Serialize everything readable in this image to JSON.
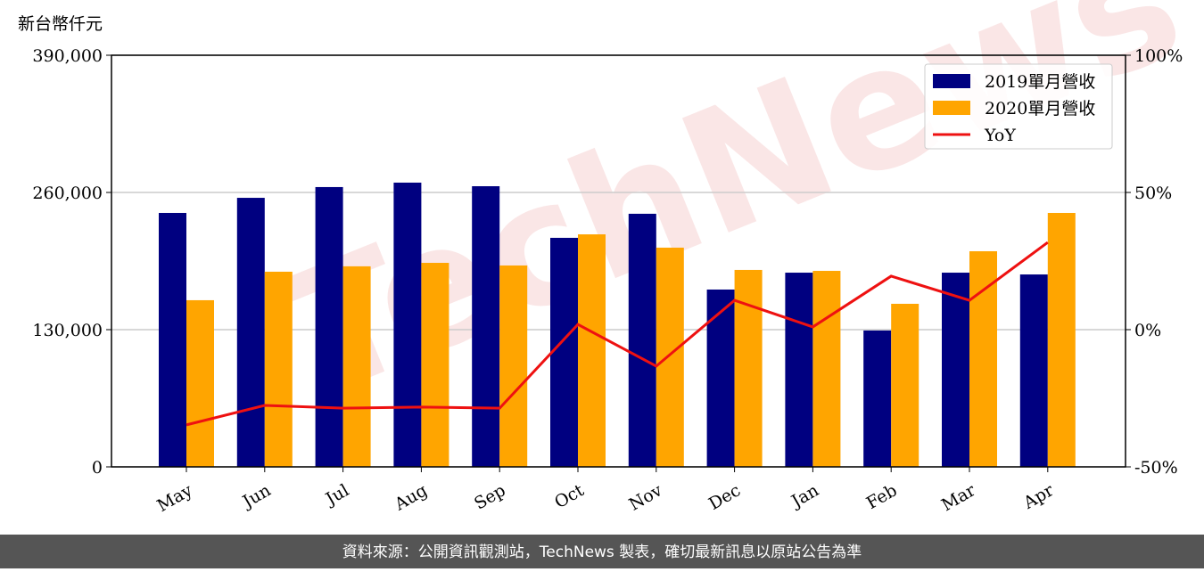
{
  "chart_data": {
    "type": "bar_line",
    "ylabel": "新台幣仟元",
    "watermark": "TechNews",
    "footer": "資料來源：公開資訊觀測站，TechNews 製表，確切最新訊息以原站公告為準",
    "categories": [
      "May",
      "Jun",
      "Jul",
      "Aug",
      "Sep",
      "Oct",
      "Nov",
      "Dec",
      "Jan",
      "Feb",
      "Mar",
      "Apr"
    ],
    "series": [
      {
        "name": "2019單月營收",
        "color": "#000080",
        "type": "bar",
        "values": [
          240600,
          254900,
          265100,
          269300,
          265900,
          217000,
          239800,
          168000,
          184000,
          129200,
          184000,
          182300
        ]
      },
      {
        "name": "2020單月營收",
        "color": "#ffa500",
        "type": "bar",
        "values": [
          157900,
          184900,
          190000,
          193300,
          190800,
          220300,
          207700,
          186600,
          185700,
          154500,
          204300,
          240600
        ]
      },
      {
        "name": "YoY",
        "color": "#ee1111",
        "type": "line",
        "axis": "y2",
        "values": [
          -34.7,
          -27.6,
          -28.6,
          -28.2,
          -28.6,
          1.9,
          -13.3,
          10.7,
          1.0,
          19.5,
          10.7,
          31.8
        ]
      }
    ],
    "ylim": [
      0,
      390000
    ],
    "yticks": [
      0,
      {
        "value": 130000,
        "label": "130,000"
      },
      {
        "value": 260000,
        "label": "260,000"
      },
      {
        "value": 390000,
        "label": "390,000"
      }
    ],
    "y2lim": [
      -50,
      100
    ],
    "y2ticks": [
      {
        "value": -50,
        "label": "-50%"
      },
      {
        "value": 0,
        "label": "0%"
      },
      {
        "value": 50,
        "label": "50%"
      },
      {
        "value": 100,
        "label": "100%"
      }
    ],
    "grid": true,
    "legend": "upper right"
  }
}
